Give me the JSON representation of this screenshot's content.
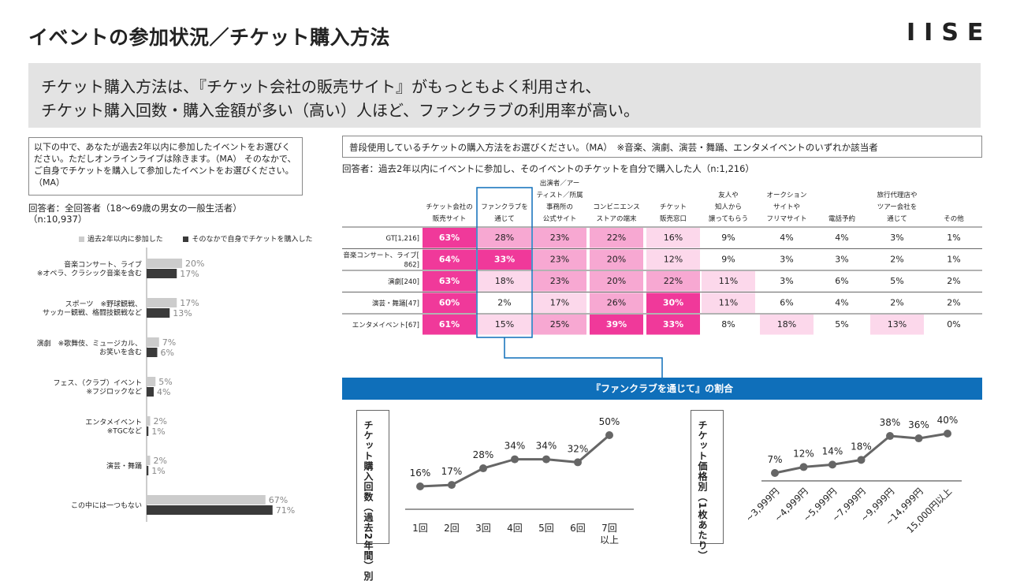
{
  "header": {
    "title": "イベントの参加状況／チケット購入方法",
    "logo": "IISE"
  },
  "summary": {
    "line1": "チケット購入方法は、『チケット会社の販売サイト』がもっともよく利用され、",
    "line2": "チケット購入回数・購入金額が多い（高い）人ほど、ファンクラブの利用率が高い。"
  },
  "left_panel": {
    "question": "以下の中で、あなたが過去2年以内に参加したイベントをお選びください。ただしオンラインライブは除きます。（MA） そのなかで、ご自身でチケットを購入して参加したイベントをお選びください。（MA）",
    "respondents_line1": "回答者：全回答者（18～69歳の男女の一般生活者）",
    "respondents_line2": "（n:10,937）"
  },
  "right_panel": {
    "question": "普段使用しているチケットの購入方法をお選びください。（MA）　※音楽、演劇、演芸・舞踊、エンタメイベントのいずれか該当者",
    "respondents": "回答者：過去2年以内にイベントに参加し、そのイベントのチケットを自分で購入した人（n:1,216）",
    "banner": "『ファンクラブを通じて』の割合"
  },
  "chart_data": [
    {
      "type": "bar",
      "orientation": "horizontal",
      "categories": [
        [
          "音楽コンサート、ライブ",
          "※オペラ、クラシック音楽を含む"
        ],
        [
          "スポーツ　※野球観戦、",
          "サッカー観戦、格闘技観戦など"
        ],
        [
          "演劇　※歌舞伎、ミュージカル、",
          "お笑いを含む"
        ],
        [
          "フェス、（クラブ）イベント",
          "※フジロックなど"
        ],
        [
          "エンタメイベント",
          "※TGCなど"
        ],
        [
          "演芸・舞踊"
        ],
        [
          "この中には一つもない"
        ]
      ],
      "series": [
        {
          "name": "過去2年以内に参加した",
          "color": "#cccccc",
          "values": [
            20,
            17,
            7,
            5,
            2,
            2,
            67
          ]
        },
        {
          "name": "そのなかで自身でチケットを購入した",
          "color": "#3a3a3a",
          "values": [
            17,
            13,
            6,
            4,
            1,
            1,
            71
          ]
        }
      ],
      "xlim": [
        0,
        80
      ],
      "legend": "top"
    },
    {
      "type": "table",
      "columns": [
        "チケット会社の\n販売サイト",
        "ファンクラブを\n通じて",
        "出演者／アー\nティスト／所属\n事務所の\n公式サイト",
        "コンビニエンス\nストアの端末",
        "チケット\n販売窓口",
        "友人や\n知人から\n譲ってもらう",
        "オークション\nサイトや\nフリマサイト",
        "電話予約",
        "旅行代理店や\nツアー会社を\n通じて",
        "その他"
      ],
      "rows": [
        {
          "label": "GT[1,216]",
          "values": [
            63,
            28,
            23,
            22,
            16,
            9,
            4,
            4,
            3,
            1
          ]
        },
        {
          "label": "音楽コンサート、ライブ[862]",
          "values": [
            64,
            33,
            23,
            20,
            12,
            9,
            3,
            3,
            2,
            1
          ]
        },
        {
          "label": "演劇[240]",
          "values": [
            63,
            18,
            23,
            20,
            22,
            11,
            3,
            6,
            5,
            2
          ]
        },
        {
          "label": "演芸・舞踊[47]",
          "values": [
            60,
            2,
            17,
            26,
            30,
            11,
            6,
            4,
            2,
            2
          ]
        },
        {
          "label": "エンタメイベント[67]",
          "values": [
            61,
            15,
            25,
            39,
            33,
            8,
            18,
            5,
            13,
            0
          ]
        }
      ],
      "unit": "%",
      "highlight_column": "ファンクラブを通じて"
    },
    {
      "type": "line",
      "ylabel": "チケット購入回数（過去2年間）別",
      "categories": [
        "1回",
        "2回",
        "3回",
        "4回",
        "5回",
        "6回",
        "7回以上"
      ],
      "values": [
        16,
        17,
        28,
        34,
        34,
        32,
        50
      ],
      "unit": "%",
      "color": "#666666"
    },
    {
      "type": "line",
      "ylabel": "チケット価格別（1枚あたり）",
      "categories": [
        "~3,999円",
        "~4,999円",
        "~5,999円",
        "~7,999円",
        "~9,999円",
        "~14,999円",
        "15,000円以上"
      ],
      "values": [
        7,
        12,
        14,
        18,
        38,
        36,
        40
      ],
      "unit": "%",
      "color": "#666666"
    }
  ]
}
